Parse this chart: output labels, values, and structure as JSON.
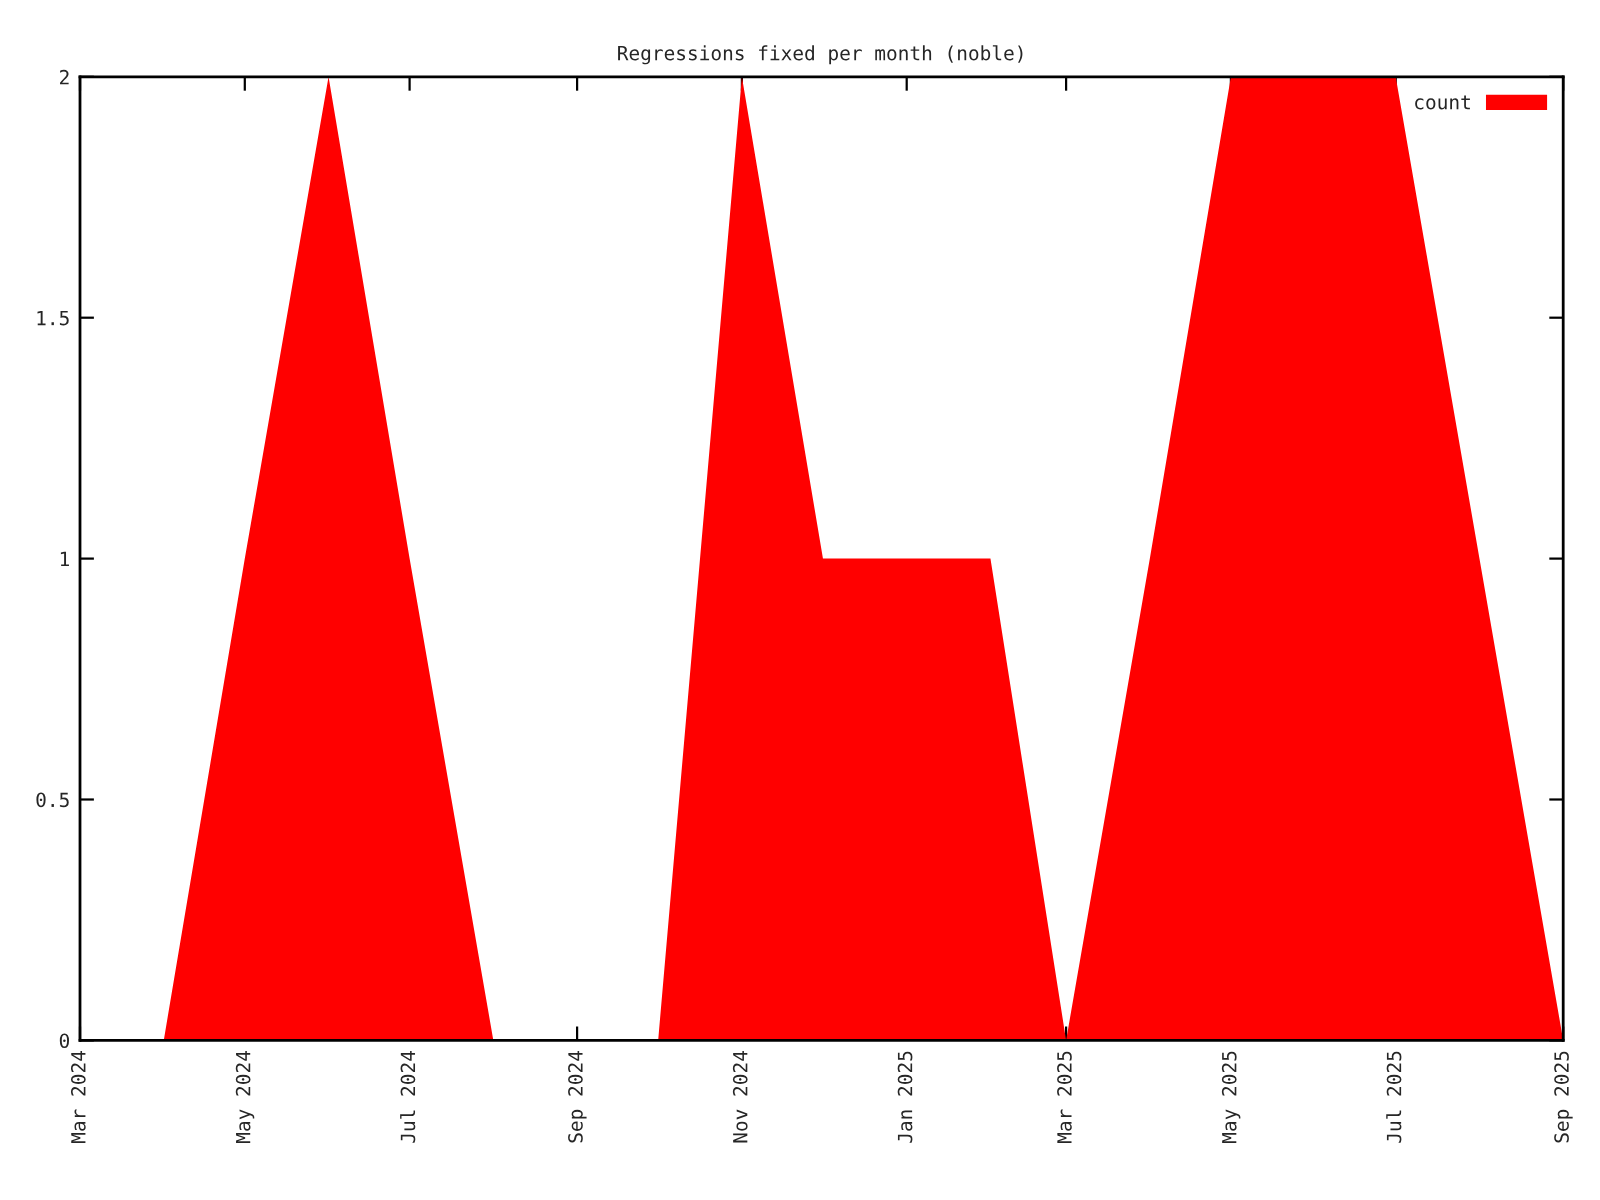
{
  "chart_data": {
    "type": "area",
    "title": "Regressions fixed per month (noble)",
    "x": [
      "2024-04",
      "2024-05",
      "2024-06",
      "2024-07",
      "2024-08",
      "2024-09",
      "2024-10",
      "2024-11",
      "2024-12",
      "2025-01",
      "2025-02",
      "2025-03",
      "2025-04",
      "2025-05",
      "2025-06",
      "2025-07",
      "2025-08",
      "2025-09"
    ],
    "series": [
      {
        "name": "count",
        "color": "#ff0000",
        "values": [
          0,
          1,
          2,
          1,
          0,
          0,
          0,
          2,
          1,
          1,
          1,
          0,
          1,
          2,
          2,
          2,
          1,
          0
        ]
      }
    ],
    "xlim": [
      "2024-03",
      "2025-09"
    ],
    "xticks": [
      {
        "value": "2024-03",
        "label": "Mar 2024"
      },
      {
        "value": "2024-05",
        "label": "May 2024"
      },
      {
        "value": "2024-07",
        "label": "Jul 2024"
      },
      {
        "value": "2024-09",
        "label": "Sep 2024"
      },
      {
        "value": "2024-11",
        "label": "Nov 2024"
      },
      {
        "value": "2025-01",
        "label": "Jan 2025"
      },
      {
        "value": "2025-03",
        "label": "Mar 2025"
      },
      {
        "value": "2025-05",
        "label": "May 2025"
      },
      {
        "value": "2025-07",
        "label": "Jul 2025"
      },
      {
        "value": "2025-09",
        "label": "Sep 2025"
      }
    ],
    "ylim": [
      0,
      2
    ],
    "yticks": [
      0,
      0.5,
      1,
      1.5,
      2
    ],
    "grid": false,
    "legend": "top right"
  }
}
